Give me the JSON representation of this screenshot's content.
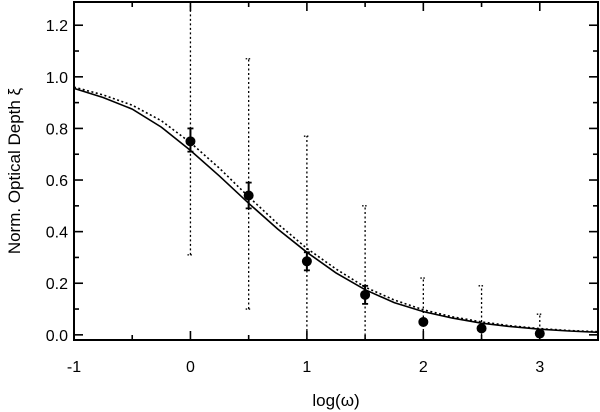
{
  "chart_data": {
    "type": "scatter",
    "xlabel": "log(ω)",
    "ylabel": "Norm. Optical Depth ξ",
    "xlim": [
      -1,
      3.5
    ],
    "ylim": [
      -0.02,
      1.29
    ],
    "xticks": [
      -1,
      0,
      1,
      2,
      3
    ],
    "yticks": [
      0.0,
      0.2,
      0.4,
      0.6,
      0.8,
      1.0,
      1.2
    ],
    "ytick_labels": [
      "0.0",
      "0.2",
      "0.4",
      "0.6",
      "0.8",
      "1.0",
      "1.2"
    ],
    "grid": false,
    "points": [
      {
        "x": 0.0,
        "y": 0.75,
        "err_solid": [
          0.71,
          0.8
        ],
        "err_dotted": [
          0.31,
          1.29
        ]
      },
      {
        "x": 0.5,
        "y": 0.54,
        "err_solid": [
          0.49,
          0.59
        ],
        "err_dotted": [
          0.1,
          1.07
        ]
      },
      {
        "x": 1.0,
        "y": 0.285,
        "err_solid": [
          0.25,
          0.32
        ],
        "err_dotted": [
          -0.02,
          0.77
        ]
      },
      {
        "x": 1.5,
        "y": 0.155,
        "err_solid": [
          0.12,
          0.19
        ],
        "err_dotted": [
          -0.02,
          0.5
        ]
      },
      {
        "x": 2.0,
        "y": 0.05,
        "err_solid": [
          0.04,
          0.06
        ],
        "err_dotted": [
          -0.02,
          0.22
        ]
      },
      {
        "x": 2.5,
        "y": 0.025,
        "err_solid": [
          0.02,
          0.03
        ],
        "err_dotted": [
          -0.02,
          0.19
        ]
      },
      {
        "x": 3.0,
        "y": 0.005,
        "err_solid": [
          0.0,
          0.01
        ],
        "err_dotted": [
          -0.02,
          0.08
        ]
      }
    ],
    "curves": [
      {
        "style": "solid",
        "x": [
          -1,
          -0.75,
          -0.5,
          -0.25,
          0,
          0.25,
          0.5,
          0.75,
          1,
          1.25,
          1.5,
          1.75,
          2,
          2.25,
          2.5,
          2.75,
          3,
          3.25,
          3.5
        ],
        "y": [
          0.955,
          0.92,
          0.875,
          0.805,
          0.715,
          0.615,
          0.51,
          0.41,
          0.32,
          0.24,
          0.175,
          0.125,
          0.09,
          0.065,
          0.045,
          0.032,
          0.022,
          0.015,
          0.01
        ]
      },
      {
        "style": "dotted",
        "x": [
          -1,
          -0.75,
          -0.5,
          -0.25,
          0,
          0.25,
          0.5,
          0.75,
          1,
          1.25,
          1.5,
          1.75,
          2,
          2.25,
          2.5,
          2.75,
          3,
          3.25,
          3.5
        ],
        "y": [
          0.96,
          0.93,
          0.89,
          0.83,
          0.745,
          0.645,
          0.535,
          0.43,
          0.335,
          0.255,
          0.185,
          0.135,
          0.097,
          0.07,
          0.05,
          0.035,
          0.024,
          0.017,
          0.012
        ]
      }
    ]
  }
}
